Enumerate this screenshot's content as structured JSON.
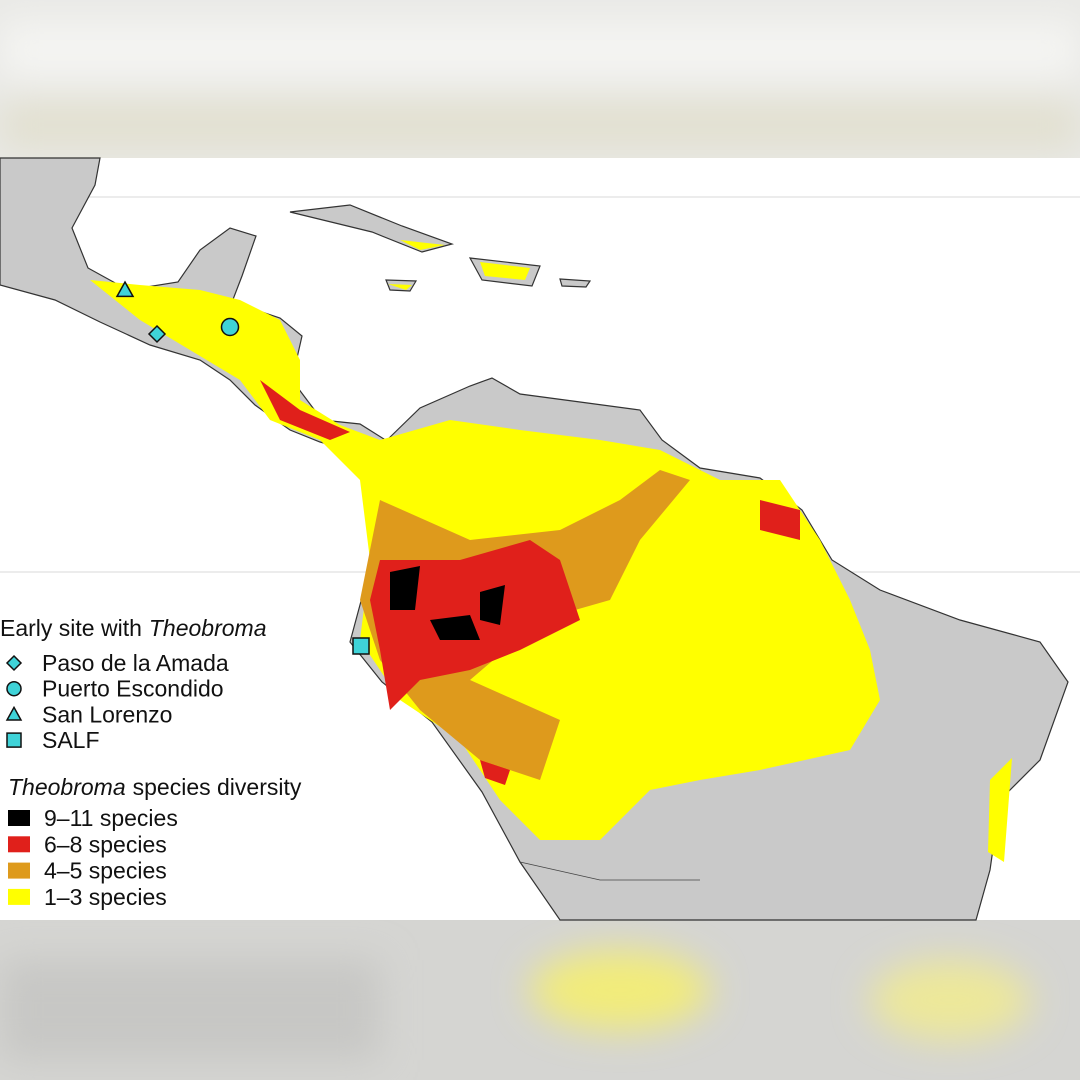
{
  "legend_sites": {
    "title": {
      "text": "Early site with",
      "italic": "Theobroma"
    },
    "items": [
      {
        "label": "Paso de la Amada",
        "shape": "diamond"
      },
      {
        "label": "Puerto Escondido",
        "shape": "circle"
      },
      {
        "label": "San Lorenzo",
        "shape": "triangle"
      },
      {
        "label": "SALF",
        "shape": "square"
      }
    ],
    "marker_color": "#3fd3d8"
  },
  "legend_diversity": {
    "title": {
      "italic": "Theobroma",
      "text": "species diversity"
    },
    "classes": [
      {
        "label": "9–11 species",
        "color": "#000000"
      },
      {
        "label": "6–8 species",
        "color": "#e0201b"
      },
      {
        "label": "4–5 species",
        "color": "#de9a1c"
      },
      {
        "label": "1–3 species",
        "color": "#ffff00"
      }
    ]
  }
}
